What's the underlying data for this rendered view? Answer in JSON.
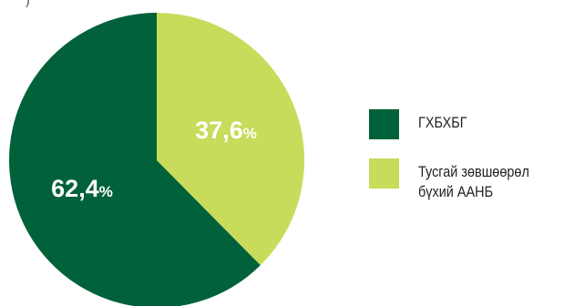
{
  "stray_text": ")",
  "chart_data": {
    "type": "pie",
    "title": "",
    "slices": [
      {
        "label": "ГХБХБГ",
        "value": 62.4,
        "display_value": "62,4",
        "unit": "%",
        "color": "#00613a"
      },
      {
        "label": "Тусгай зөвшөөрөл бүхий ААНБ",
        "value": 37.6,
        "display_value": "37,6",
        "unit": "%",
        "color": "#c8db5a"
      }
    ],
    "legend_position": "right"
  }
}
